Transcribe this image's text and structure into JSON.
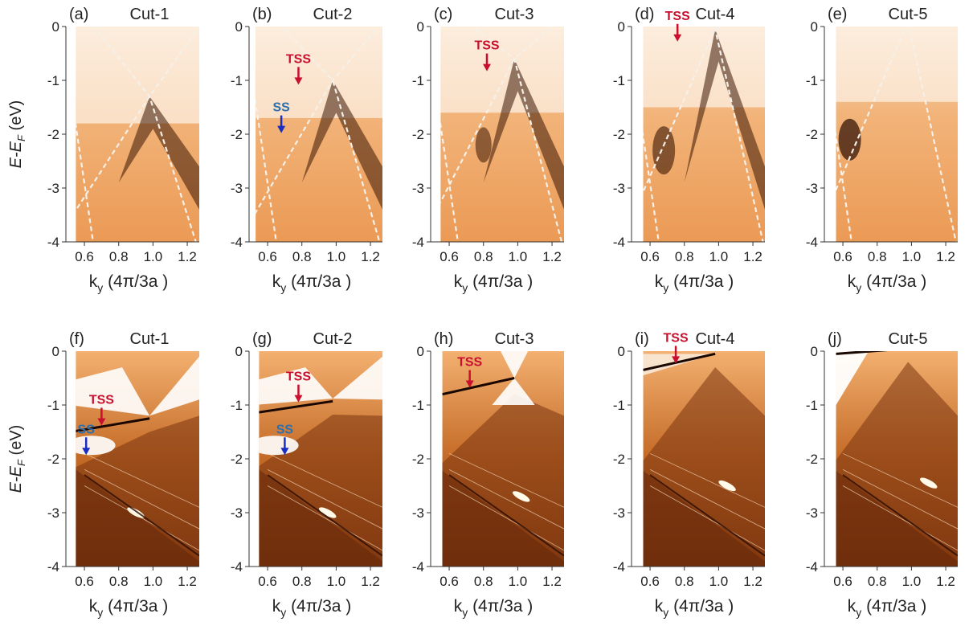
{
  "y_axis_label": "E-E",
  "y_axis_label_sub": "F",
  "y_axis_unit": " (eV)",
  "x_axis_label": "k",
  "x_axis_label_sub": "y",
  "x_axis_unit": " (4π/3a )",
  "y_ticks": [
    "0",
    "-1",
    "-2",
    "-3",
    "-4"
  ],
  "x_ticks": [
    "0.6",
    "0.8",
    "1.0",
    "1.2"
  ],
  "colors": {
    "tss": "#c8102e",
    "ss": "#2a6fb0",
    "arrow_ss": "#1a2fc0",
    "low": "#fbf2e8",
    "mid": "#e8903a",
    "high": "#1a0800"
  },
  "panels": [
    {
      "letter": "(a)",
      "title": "Cut-1",
      "row": "arpes",
      "annotations": []
    },
    {
      "letter": "(b)",
      "title": "Cut-2",
      "row": "arpes",
      "annotations": [
        {
          "text": "TSS",
          "kind": "tss",
          "k": 0.78,
          "e": -1.05
        },
        {
          "text": "SS",
          "kind": "ss",
          "k": 0.68,
          "e": -1.95
        }
      ]
    },
    {
      "letter": "(c)",
      "title": "Cut-3",
      "row": "arpes",
      "annotations": [
        {
          "text": "TSS",
          "kind": "tss",
          "k": 0.82,
          "e": -0.8
        }
      ]
    },
    {
      "letter": "(d)",
      "title": "Cut-4",
      "row": "arpes",
      "annotations": [
        {
          "text": "TSS",
          "kind": "tss",
          "k": 0.76,
          "e": -0.25
        }
      ]
    },
    {
      "letter": "(e)",
      "title": "Cut-5",
      "row": "arpes",
      "annotations": []
    },
    {
      "letter": "(f)",
      "title": "Cut-1",
      "row": "calc",
      "annotations": [
        {
          "text": "TSS",
          "kind": "tss",
          "k": 0.7,
          "e": -1.35
        },
        {
          "text": "SS",
          "kind": "ss",
          "k": 0.61,
          "e": -1.9
        }
      ]
    },
    {
      "letter": "(g)",
      "title": "Cut-2",
      "row": "calc",
      "annotations": [
        {
          "text": "TSS",
          "kind": "tss",
          "k": 0.78,
          "e": -0.92
        },
        {
          "text": "SS",
          "kind": "ss",
          "k": 0.7,
          "e": -1.9
        }
      ]
    },
    {
      "letter": "(h)",
      "title": "Cut-3",
      "row": "calc",
      "annotations": [
        {
          "text": "TSS",
          "kind": "tss",
          "k": 0.72,
          "e": -0.65
        }
      ]
    },
    {
      "letter": "(i)",
      "title": "Cut-4",
      "row": "calc",
      "annotations": [
        {
          "text": "TSS",
          "kind": "tss",
          "k": 0.75,
          "e": -0.2
        }
      ]
    },
    {
      "letter": "(j)",
      "title": "Cut-5",
      "row": "calc",
      "annotations": []
    }
  ]
}
